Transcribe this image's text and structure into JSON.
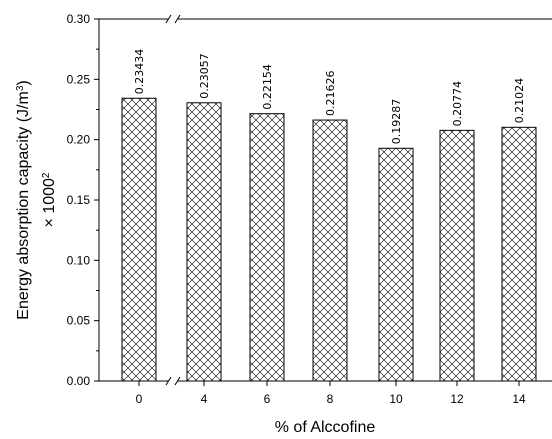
{
  "chart_data": {
    "type": "bar",
    "title": "",
    "xlabel": "% of Alccofine",
    "ylabel": {
      "line1_prefix": "Energy absorption capacity (J/m",
      "line1_sup": "3",
      "line1_suffix": ")",
      "line2_prefix": "× 1000",
      "line2_sup": "2"
    },
    "categories": [
      "0",
      "4",
      "6",
      "8",
      "10",
      "12",
      "14"
    ],
    "values": [
      0.23434,
      0.23057,
      0.22154,
      0.21626,
      0.19287,
      0.20774,
      0.21024
    ],
    "value_labels": [
      "0.23434",
      "0.23057",
      "0.22154",
      "0.21626",
      "0.19287",
      "0.20774",
      "0.21024"
    ],
    "ylim": [
      0,
      0.3
    ],
    "yticks": [
      "0.00",
      "0.05",
      "0.10",
      "0.15",
      "0.20",
      "0.25",
      "0.30"
    ],
    "ytick_values": [
      0,
      0.05,
      0.1,
      0.15,
      0.2,
      0.25,
      0.3
    ],
    "grid": false,
    "legend": "none",
    "axis_break": "x-axis between 0 and 4",
    "bar_fill": "crosshatch",
    "colors": {
      "bar_stroke": "#000000",
      "hatch": "#000000",
      "background": "#ffffff"
    }
  }
}
